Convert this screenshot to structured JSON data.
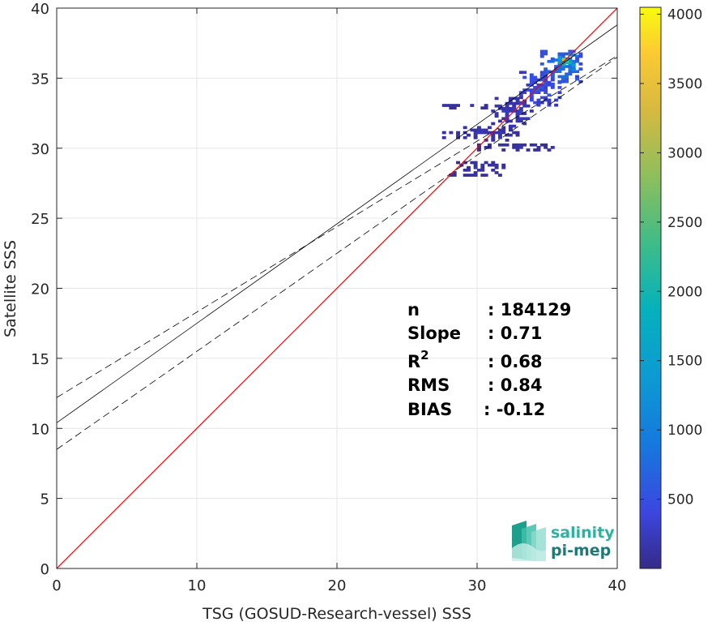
{
  "chart_data": {
    "type": "heatmap",
    "title": "",
    "xlabel": "TSG (GOSUD-Research-vessel) SSS",
    "ylabel": "Satellite SSS",
    "xlim": [
      0,
      40
    ],
    "ylim": [
      0,
      40
    ],
    "xticks": [
      "0",
      "10",
      "20",
      "30",
      "40"
    ],
    "yticks": [
      "0",
      "5",
      "10",
      "15",
      "20",
      "25",
      "30",
      "35",
      "40"
    ],
    "grid": true,
    "colorbar": {
      "range": [
        0,
        4050
      ],
      "ticks": [
        "500",
        "1000",
        "1500",
        "2000",
        "2500",
        "3000",
        "3500",
        "4000"
      ],
      "tick_values": [
        500,
        1000,
        1500,
        2000,
        2500,
        3000,
        3500,
        4000
      ]
    },
    "lines": {
      "identity": {
        "slope": 1,
        "intercept": 0,
        "color": "#ff0000"
      },
      "regression": {
        "slope": 0.71,
        "intercept": 10.4,
        "color": "#000000"
      },
      "regression_upper": {
        "slope": 0.61,
        "intercept": 12.2,
        "color": "#000000",
        "style": "dashed"
      },
      "regression_lower": {
        "slope": 0.7,
        "intercept": 8.5,
        "color": "#000000",
        "style": "dashed"
      }
    },
    "density_clusters": [
      {
        "x": [
          31.0,
          34.0
        ],
        "y": [
          31.5,
          33.5
        ],
        "level": 200
      },
      {
        "x": [
          33.0,
          36.0
        ],
        "y": [
          33.0,
          35.5
        ],
        "level": 450
      },
      {
        "x": [
          34.5,
          37.5
        ],
        "y": [
          34.5,
          37.0
        ],
        "level": 700
      },
      {
        "x": [
          35.5,
          37.0
        ],
        "y": [
          35.5,
          36.8
        ],
        "level": 1300
      },
      {
        "x": [
          35.8,
          36.4
        ],
        "y": [
          35.9,
          36.4
        ],
        "level": 2400
      },
      {
        "x": [
          27.5,
          33.0
        ],
        "y": [
          30.5,
          31.5
        ],
        "level": 150
      },
      {
        "x": [
          28.0,
          32.0
        ],
        "y": [
          28.0,
          29.0
        ],
        "level": 120
      },
      {
        "x": [
          27.0,
          31.0
        ],
        "y": [
          32.8,
          33.1
        ],
        "level": 120
      },
      {
        "x": [
          30.0,
          35.5
        ],
        "y": [
          29.8,
          30.3
        ],
        "level": 120
      }
    ],
    "stats": [
      {
        "key": "n",
        "value": ": 184129"
      },
      {
        "key": "Slope",
        "value": ": 0.71"
      },
      {
        "key": "R",
        "sup": "2",
        "value": ": 0.68"
      },
      {
        "key": "RMS",
        "value": ": 0.84"
      },
      {
        "key": "BIAS",
        "value": ": -0.12"
      }
    ]
  },
  "logo": {
    "line1": "salinity",
    "line2": "pi-mep",
    "color1": "#2bb3a0",
    "color2": "#1e7a77"
  },
  "colors": {
    "axis": "#262626",
    "grid": "#e6e6e6",
    "identity": "#ff0000"
  }
}
